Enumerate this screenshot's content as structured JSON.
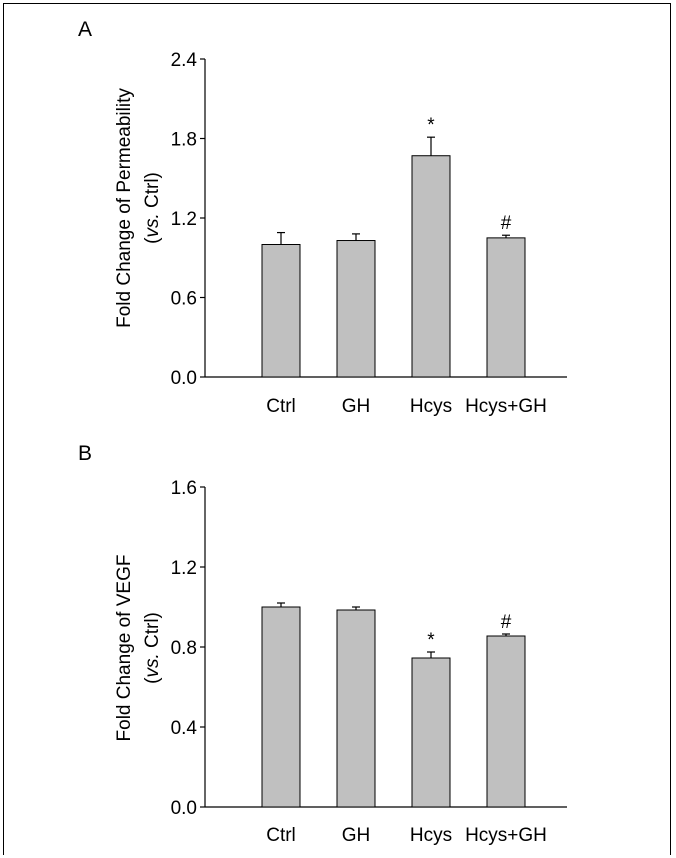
{
  "figure": {
    "panels": [
      "A",
      "B"
    ]
  },
  "colors": {
    "bar_fill": "#c0c0c0",
    "bar_stroke": "#000000",
    "axis": "#000000"
  },
  "chart_data": [
    {
      "type": "bar",
      "panel_label": "A",
      "title": "",
      "ylabel_line1": "Fold Change of Permeability",
      "ylabel_line2": "(vs. Ctrl)",
      "xlabel": "",
      "categories": [
        "Ctrl",
        "GH",
        "Hcys",
        "Hcys+GH"
      ],
      "values": [
        1.0,
        1.03,
        1.67,
        1.05
      ],
      "errors": [
        0.09,
        0.05,
        0.14,
        0.02
      ],
      "annotations": [
        "",
        "",
        "*",
        "#"
      ],
      "ylim": [
        0.0,
        2.4
      ],
      "yticks": [
        0.0,
        0.6,
        1.2,
        1.8,
        2.4
      ],
      "ytick_labels": [
        "0.0",
        "0.6",
        "1.2",
        "1.8",
        "2.4"
      ],
      "grid": false,
      "legend": "none"
    },
    {
      "type": "bar",
      "panel_label": "B",
      "title": "",
      "ylabel_line1": "Fold Change of VEGF",
      "ylabel_line2": "(vs. Ctrl)",
      "xlabel": "",
      "categories": [
        "Ctrl",
        "GH",
        "Hcys",
        "Hcys+GH"
      ],
      "values": [
        1.0,
        0.985,
        0.745,
        0.855
      ],
      "errors": [
        0.02,
        0.015,
        0.03,
        0.01
      ],
      "annotations": [
        "",
        "",
        "*",
        "#"
      ],
      "ylim": [
        0.0,
        1.6
      ],
      "yticks": [
        0.0,
        0.4,
        0.8,
        1.2,
        1.6
      ],
      "ytick_labels": [
        "0.0",
        "0.4",
        "0.8",
        "1.2",
        "1.6"
      ],
      "grid": false,
      "legend": "none"
    }
  ]
}
